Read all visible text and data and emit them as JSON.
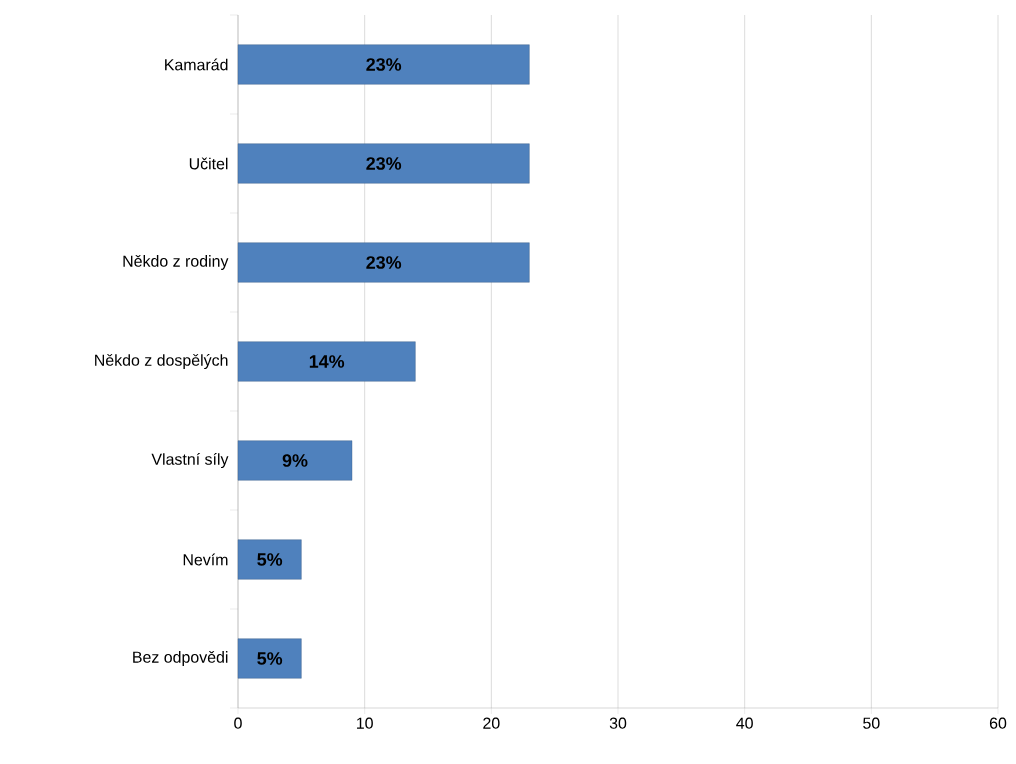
{
  "chart_data": {
    "type": "bar",
    "orientation": "horizontal",
    "categories": [
      "Kamarád",
      "Učitel",
      "Někdo z rodiny",
      "Někdo z dospělých",
      "Vlastní síly",
      "Nevím",
      "Bez odpovědi"
    ],
    "values": [
      23,
      23,
      23,
      14,
      9,
      5,
      5
    ],
    "value_labels": [
      "23%",
      "23%",
      "23%",
      "14%",
      "9%",
      "5%",
      "5%"
    ],
    "color": "#4f81bd",
    "xlim": [
      0,
      60
    ],
    "xticks": [
      0,
      10,
      20,
      30,
      40,
      50,
      60
    ],
    "grid": "x"
  }
}
